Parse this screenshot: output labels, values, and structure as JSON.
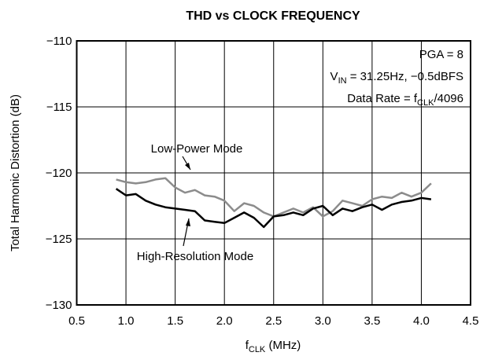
{
  "chart_data": {
    "type": "line",
    "title": "THD vs CLOCK FREQUENCY",
    "ylabel": "Total Harmonic Distortion (dB)",
    "xlabel": [
      {
        "text": "f"
      },
      {
        "text": "CLK",
        "sub": true
      },
      {
        "text": " (MHz)"
      }
    ],
    "xlim": [
      0.5,
      4.5
    ],
    "ylim": [
      -130,
      -110
    ],
    "xticks": [
      0.5,
      {
        "value": 1,
        "label": "1.0"
      },
      1.5,
      {
        "value": 2,
        "label": "2.0"
      },
      2.5,
      {
        "value": 3,
        "label": "3.0"
      },
      3.5,
      {
        "value": 4,
        "label": "4.0"
      },
      4.5
    ],
    "yticks": [
      {
        "value": -130,
        "label": "−130"
      },
      {
        "value": -125,
        "label": "−125"
      },
      {
        "value": -120,
        "label": "−120"
      },
      {
        "value": -115,
        "label": "−115"
      },
      {
        "value": -110,
        "label": "−110"
      }
    ],
    "grid": true,
    "annotations": [
      {
        "parts": [
          {
            "text": "PGA = 8"
          }
        ]
      },
      {
        "parts": [
          {
            "text": "V"
          },
          {
            "text": "IN",
            "sub": true
          },
          {
            "text": " = 31.25Hz, −0.5dBFS"
          }
        ]
      },
      {
        "parts": [
          {
            "text": "Data Rate = f"
          },
          {
            "text": "CLK",
            "sub": true
          },
          {
            "text": "/4096"
          }
        ]
      }
    ],
    "x": [
      0.9,
      1.0,
      1.1,
      1.2,
      1.3,
      1.4,
      1.5,
      1.6,
      1.7,
      1.8,
      1.9,
      2.0,
      2.1,
      2.2,
      2.3,
      2.4,
      2.5,
      2.6,
      2.7,
      2.8,
      2.9,
      3.0,
      3.1,
      3.2,
      3.3,
      3.4,
      3.5,
      3.6,
      3.7,
      3.8,
      3.9,
      4.0,
      4.1
    ],
    "series": [
      {
        "name": "Low-Power Mode",
        "color": "#8c8c8c",
        "values": [
          -120.5,
          -120.7,
          -120.8,
          -120.7,
          -120.5,
          -120.4,
          -121.1,
          -121.5,
          -121.3,
          -121.7,
          -121.8,
          -122.1,
          -122.9,
          -122.3,
          -122.5,
          -123.0,
          -123.3,
          -123.0,
          -122.7,
          -123.0,
          -122.6,
          -123.3,
          -122.9,
          -122.1,
          -122.3,
          -122.5,
          -122.0,
          -121.8,
          -121.9,
          -121.5,
          -121.8,
          -121.5,
          -120.8
        ]
      },
      {
        "name": "High-Resolution Mode",
        "color": "#000000",
        "values": [
          -121.2,
          -121.7,
          -121.6,
          -122.1,
          -122.4,
          -122.6,
          -122.7,
          -122.8,
          -122.9,
          -123.6,
          -123.7,
          -123.8,
          -123.4,
          -123.0,
          -123.4,
          -124.1,
          -123.3,
          -123.2,
          -123.0,
          -123.2,
          -122.7,
          -122.5,
          -123.2,
          -122.7,
          -122.9,
          -122.6,
          -122.4,
          -122.8,
          -122.4,
          -122.2,
          -122.1,
          -121.9,
          -122.0
        ]
      }
    ]
  }
}
